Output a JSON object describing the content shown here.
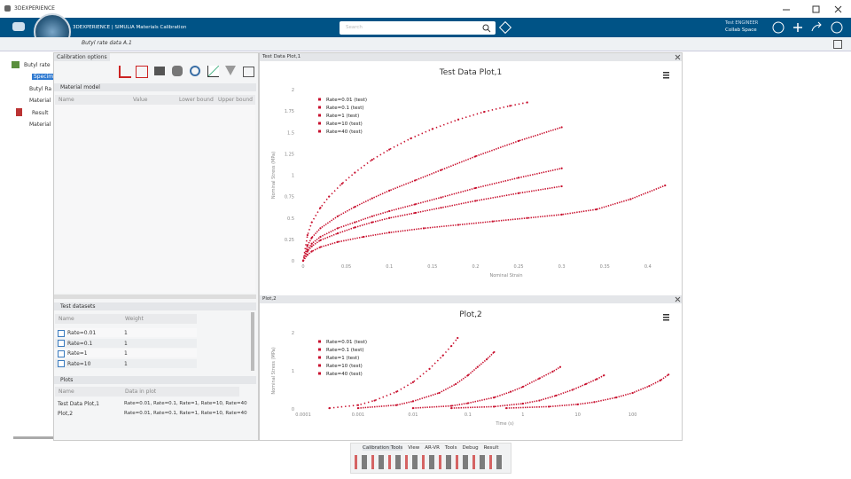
{
  "window": {
    "title": "3DEXPERIENCE"
  },
  "header": {
    "brand": "3DEXPERIENCE | SIMULIA Materials Calibration",
    "search": "Search",
    "user": "Test ENGINEER",
    "space": "Collab Space"
  },
  "tab": "Butyl rate data A.1",
  "tree": [
    "Butyl rate",
    "Specimens",
    "Butyl Ra",
    "Material",
    "Result",
    "Material"
  ],
  "calibration": {
    "title": "Calibration options",
    "model_section": "Material model",
    "model_headers": [
      "Name",
      "Value",
      "Lower bound",
      "Upper bound"
    ],
    "datasets_section": "Test datasets",
    "dataset_headers": [
      "Name",
      "Weight"
    ],
    "dataset_rows": [
      [
        "Rate=0.01",
        "1"
      ],
      [
        "Rate=0.1",
        "1"
      ],
      [
        "Rate=1",
        "1"
      ],
      [
        "Rate=10",
        "1"
      ]
    ],
    "plots_section": "Plots",
    "plot_headers": [
      "Name",
      "Data in plot"
    ],
    "plot_rows": [
      [
        "Test Data Plot,1",
        "Rate=0.01, Rate=0.1, Rate=1, Rate=10, Rate=40"
      ],
      [
        "Plot,2",
        "Rate=0.01, Rate=0.1, Rate=1, Rate=10, Rate=40"
      ]
    ]
  },
  "panels": [
    "Test Data Plot,1",
    "Plot,2"
  ],
  "toolbar": [
    "Calibration Tools",
    "View",
    "AR-VR",
    "Tools",
    "Debug",
    "Result"
  ],
  "chart_data": [
    {
      "type": "scatter",
      "title": "Test Data Plot,1",
      "x_label": "Nominal Strain",
      "y_label": "Nominal Stress (MPa)",
      "xlim": [
        0,
        0.43
      ],
      "ylim": [
        0,
        2
      ],
      "log_x": false,
      "xticks": [
        0,
        0.05,
        0.1,
        0.15,
        0.2,
        0.25,
        0.3,
        0.35,
        0.4
      ],
      "yticks": [
        0,
        0.25,
        0.5,
        0.75,
        1,
        1.25,
        1.5,
        1.75,
        2
      ],
      "series": [
        {
          "name": "Rate=0.01 (test)",
          "color": "#c8102e",
          "x": [
            0,
            0.005,
            0.01,
            0.02,
            0.03,
            0.045,
            0.06,
            0.08,
            0.1,
            0.125,
            0.15,
            0.18,
            0.21,
            0.24,
            0.26
          ],
          "values": [
            0,
            0.3,
            0.45,
            0.62,
            0.75,
            0.9,
            1.03,
            1.18,
            1.3,
            1.43,
            1.54,
            1.65,
            1.74,
            1.81,
            1.85
          ]
        },
        {
          "name": "Rate=0.1 (test)",
          "color": "#c8102e",
          "x": [
            0,
            0.005,
            0.01,
            0.02,
            0.04,
            0.06,
            0.08,
            0.1,
            0.13,
            0.16,
            0.2,
            0.25,
            0.3
          ],
          "values": [
            0,
            0.18,
            0.27,
            0.38,
            0.52,
            0.63,
            0.73,
            0.82,
            0.94,
            1.06,
            1.22,
            1.4,
            1.56
          ]
        },
        {
          "name": "Rate=1 (test)",
          "color": "#c8102e",
          "x": [
            0,
            0.005,
            0.01,
            0.02,
            0.04,
            0.06,
            0.08,
            0.1,
            0.13,
            0.16,
            0.2,
            0.25,
            0.3
          ],
          "values": [
            0,
            0.13,
            0.2,
            0.28,
            0.38,
            0.45,
            0.52,
            0.58,
            0.66,
            0.74,
            0.85,
            0.97,
            1.08
          ]
        },
        {
          "name": "Rate=10 (test)",
          "color": "#c8102e",
          "x": [
            0,
            0.005,
            0.01,
            0.02,
            0.04,
            0.06,
            0.08,
            0.1,
            0.13,
            0.16,
            0.2,
            0.25,
            0.3
          ],
          "values": [
            0,
            0.11,
            0.17,
            0.24,
            0.32,
            0.39,
            0.45,
            0.5,
            0.56,
            0.62,
            0.7,
            0.79,
            0.87
          ]
        },
        {
          "name": "Rate=40 (test)",
          "color": "#c8102e",
          "x": [
            0,
            0.005,
            0.01,
            0.02,
            0.04,
            0.07,
            0.1,
            0.14,
            0.18,
            0.22,
            0.26,
            0.3,
            0.34,
            0.38,
            0.42
          ],
          "values": [
            0,
            0.07,
            0.11,
            0.16,
            0.22,
            0.28,
            0.33,
            0.38,
            0.42,
            0.46,
            0.5,
            0.54,
            0.6,
            0.72,
            0.88
          ]
        }
      ]
    },
    {
      "type": "scatter",
      "title": "Plot,2",
      "x_label": "Time (s)",
      "y_label": "Nominal Stress (MPa)",
      "xlim": [
        0.0001,
        500
      ],
      "ylim": [
        0,
        2
      ],
      "log_x": true,
      "xticks": [
        0.0001,
        0.001,
        0.01,
        0.1,
        1,
        10,
        100
      ],
      "yticks": [
        0,
        1,
        2
      ],
      "series": [
        {
          "name": "Rate=0.01 (test)",
          "color": "#c8102e",
          "x": [
            0.0003,
            0.001,
            0.002,
            0.005,
            0.01,
            0.02,
            0.035,
            0.05,
            0.065
          ],
          "values": [
            0.02,
            0.1,
            0.22,
            0.45,
            0.7,
            1.05,
            1.4,
            1.65,
            1.86
          ]
        },
        {
          "name": "Rate=0.1 (test)",
          "color": "#c8102e",
          "x": [
            0.001,
            0.005,
            0.01,
            0.03,
            0.06,
            0.1,
            0.15,
            0.22,
            0.3
          ],
          "values": [
            0.02,
            0.1,
            0.2,
            0.42,
            0.65,
            0.88,
            1.1,
            1.3,
            1.49
          ]
        },
        {
          "name": "Rate=1 (test)",
          "color": "#c8102e",
          "x": [
            0.01,
            0.05,
            0.1,
            0.3,
            0.6,
            1,
            2,
            3.5,
            4.8
          ],
          "values": [
            0.02,
            0.08,
            0.15,
            0.3,
            0.45,
            0.58,
            0.8,
            0.98,
            1.1
          ]
        },
        {
          "name": "Rate=10 (test)",
          "color": "#c8102e",
          "x": [
            0.05,
            0.3,
            1,
            2,
            4,
            8,
            14,
            22,
            30
          ],
          "values": [
            0.02,
            0.06,
            0.14,
            0.22,
            0.35,
            0.5,
            0.65,
            0.78,
            0.88
          ]
        },
        {
          "name": "Rate=40 (test)",
          "color": "#c8102e",
          "x": [
            0.5,
            3,
            10,
            20,
            50,
            100,
            200,
            320,
            450
          ],
          "values": [
            0.02,
            0.06,
            0.12,
            0.18,
            0.3,
            0.42,
            0.6,
            0.75,
            0.9
          ]
        }
      ]
    }
  ]
}
